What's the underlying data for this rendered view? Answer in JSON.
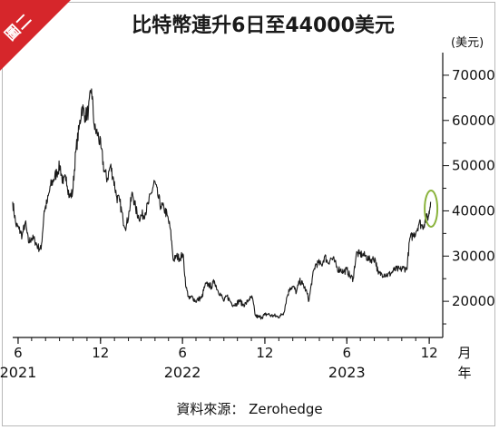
{
  "badge": {
    "label": "圖二",
    "color": "#d6262b"
  },
  "chart_data": {
    "type": "line",
    "title": "比特幣連升6日至44000美元",
    "ylabel": "(美元)",
    "xlabel": "月年",
    "x_unit_month": "月",
    "x_unit_year": "年",
    "ylim": [
      12000,
      75000
    ],
    "xlim": [
      "2021-05-20",
      "2023-12-31"
    ],
    "yticks": [
      20000,
      30000,
      40000,
      50000,
      60000,
      70000
    ],
    "ytick_labels": [
      "20000",
      "30000",
      "40000",
      "50000",
      "60000",
      "70000"
    ],
    "xticks": [
      {
        "date": "2021-06-01",
        "label": "6",
        "year": "2021"
      },
      {
        "date": "2021-12-01",
        "label": "12",
        "year": ""
      },
      {
        "date": "2022-06-01",
        "label": "6",
        "year": "2022"
      },
      {
        "date": "2022-12-01",
        "label": "12",
        "year": ""
      },
      {
        "date": "2023-06-01",
        "label": "6",
        "year": "2023"
      },
      {
        "date": "2023-12-01",
        "label": "12",
        "year": ""
      }
    ],
    "grid": false,
    "line_color": "#1a1a1a",
    "highlight_color": "#8ab33c",
    "highlight": {
      "date": "2023-12-05",
      "value": 40500
    },
    "series": [
      {
        "x": [
          "2021-05-20",
          "2021-05-27",
          "2021-06-03",
          "2021-06-10",
          "2021-06-17",
          "2021-06-24",
          "2021-07-01",
          "2021-07-08",
          "2021-07-15",
          "2021-07-22",
          "2021-07-29",
          "2021-08-05",
          "2021-08-12",
          "2021-08-19",
          "2021-08-26",
          "2021-09-02",
          "2021-09-09",
          "2021-09-16",
          "2021-09-23",
          "2021-09-30",
          "2021-10-07",
          "2021-10-14",
          "2021-10-21",
          "2021-10-28",
          "2021-11-04",
          "2021-11-11",
          "2021-11-18",
          "2021-11-25",
          "2021-12-02",
          "2021-12-09",
          "2021-12-16",
          "2021-12-23",
          "2021-12-30",
          "2022-01-06",
          "2022-01-13",
          "2022-01-20",
          "2022-01-27",
          "2022-02-03",
          "2022-02-10",
          "2022-02-17",
          "2022-02-24",
          "2022-03-03",
          "2022-03-10",
          "2022-03-17",
          "2022-03-24",
          "2022-03-31",
          "2022-04-07",
          "2022-04-14",
          "2022-04-21",
          "2022-04-28",
          "2022-05-05",
          "2022-05-12",
          "2022-05-19",
          "2022-05-26",
          "2022-06-02",
          "2022-06-09",
          "2022-06-16",
          "2022-06-23",
          "2022-06-30",
          "2022-07-07",
          "2022-07-14",
          "2022-07-21",
          "2022-07-28",
          "2022-08-04",
          "2022-08-11",
          "2022-08-18",
          "2022-08-25",
          "2022-09-01",
          "2022-09-08",
          "2022-09-15",
          "2022-09-22",
          "2022-09-29",
          "2022-10-06",
          "2022-10-13",
          "2022-10-20",
          "2022-10-27",
          "2022-11-03",
          "2022-11-10",
          "2022-11-17",
          "2022-11-24",
          "2022-12-01",
          "2022-12-08",
          "2022-12-15",
          "2022-12-22",
          "2022-12-29",
          "2023-01-05",
          "2023-01-12",
          "2023-01-19",
          "2023-01-26",
          "2023-02-02",
          "2023-02-09",
          "2023-02-16",
          "2023-02-23",
          "2023-03-02",
          "2023-03-09",
          "2023-03-16",
          "2023-03-23",
          "2023-03-30",
          "2023-04-06",
          "2023-04-13",
          "2023-04-20",
          "2023-04-27",
          "2023-05-04",
          "2023-05-11",
          "2023-05-18",
          "2023-05-25",
          "2023-06-01",
          "2023-06-08",
          "2023-06-15",
          "2023-06-22",
          "2023-06-29",
          "2023-07-06",
          "2023-07-13",
          "2023-07-20",
          "2023-07-27",
          "2023-08-03",
          "2023-08-10",
          "2023-08-17",
          "2023-08-24",
          "2023-08-31",
          "2023-09-07",
          "2023-09-14",
          "2023-09-21",
          "2023-09-28",
          "2023-10-05",
          "2023-10-12",
          "2023-10-19",
          "2023-10-26",
          "2023-11-02",
          "2023-11-09",
          "2023-11-16",
          "2023-11-23",
          "2023-11-30",
          "2023-12-04"
        ],
        "values": [
          42000,
          37000,
          36000,
          34500,
          37500,
          33000,
          34000,
          33500,
          32000,
          31500,
          40000,
          42000,
          45500,
          47000,
          48500,
          50000,
          46000,
          47500,
          43000,
          44000,
          53000,
          58000,
          63000,
          61000,
          62000,
          67000,
          58000,
          57000,
          54000,
          49000,
          47000,
          50000,
          47000,
          43000,
          42000,
          38000,
          36500,
          40000,
          44000,
          40500,
          38500,
          39000,
          39500,
          41500,
          44000,
          46500,
          43500,
          41000,
          40500,
          39000,
          36000,
          29000,
          30000,
          29500,
          30500,
          23000,
          20500,
          21000,
          20000,
          20500,
          20800,
          23500,
          23800,
          23200,
          24500,
          22500,
          21500,
          20000,
          21200,
          20000,
          19200,
          19500,
          20200,
          19200,
          19500,
          20500,
          20800,
          16800,
          16500,
          16500,
          17000,
          17200,
          16800,
          16800,
          16600,
          16800,
          17500,
          21000,
          23000,
          23200,
          22000,
          24500,
          23800,
          22500,
          20200,
          25000,
          28000,
          28500,
          28000,
          30000,
          28500,
          29500,
          29000,
          27200,
          27000,
          26500,
          27000,
          25500,
          25000,
          30500,
          30500,
          30300,
          30000,
          29200,
          29300,
          29400,
          26000,
          26100,
          26000,
          25800,
          26200,
          26900,
          27100,
          27000,
          27400,
          27000,
          34000,
          34500,
          35500,
          37500,
          36500,
          38000,
          39000,
          42000
        ]
      }
    ]
  },
  "source": {
    "label": "資料來源：",
    "name": "Zerohedge"
  }
}
